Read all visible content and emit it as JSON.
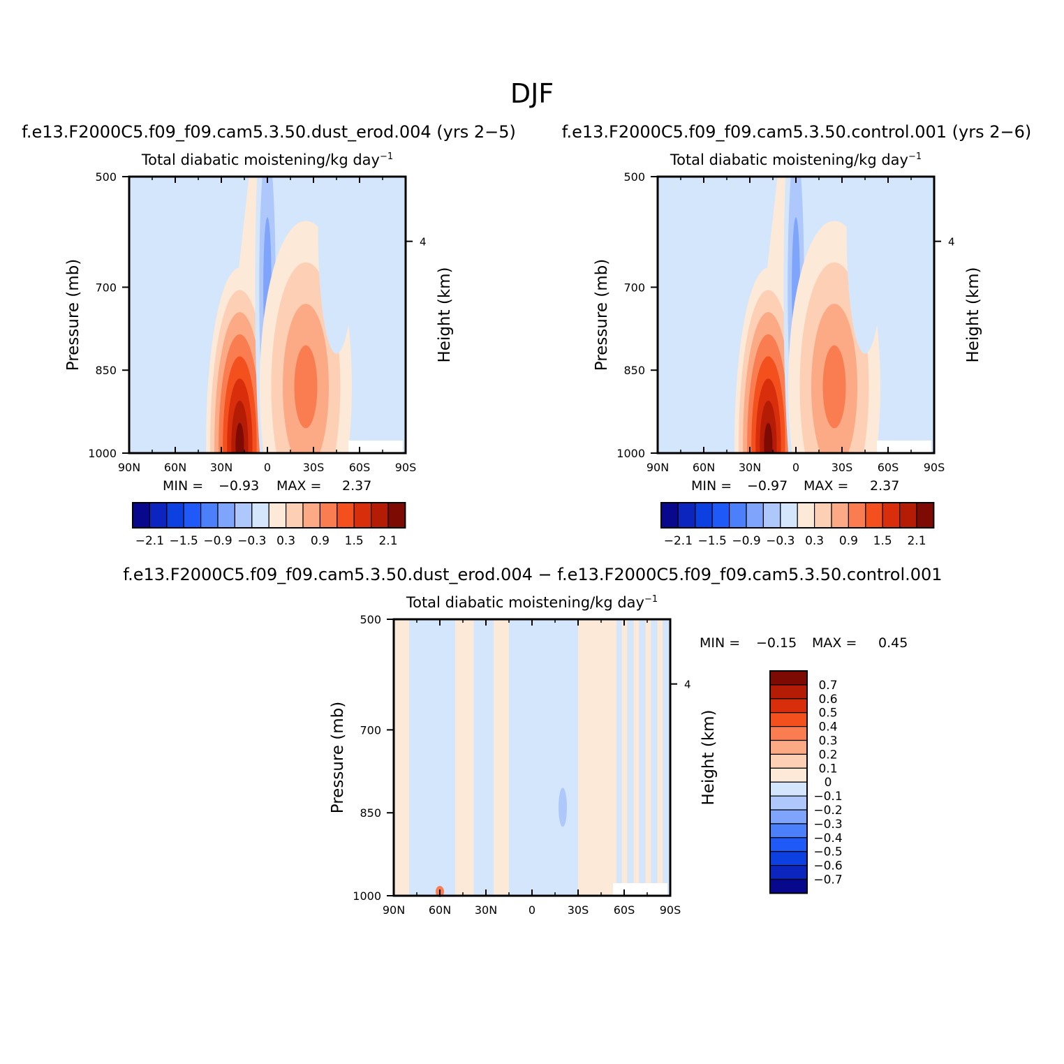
{
  "figure": {
    "title": "DJF"
  },
  "colors": {
    "diverging_16": [
      "#08088c",
      "#0b25be",
      "#0c40e0",
      "#1f5af8",
      "#4b80fa",
      "#7ea4fb",
      "#aec8fb",
      "#d4e6fb",
      "#fde9d8",
      "#fdd0b6",
      "#fcaa86",
      "#f97d50",
      "#f3501e",
      "#d82e0c",
      "#b51c06",
      "#7e0a04"
    ]
  },
  "chart_data": [
    {
      "id": "panel-a",
      "type": "contour",
      "case_title": "f.e13.F2000C5.f09_f09.cam5.3.50.dust_erod.004 (yrs 2−5)",
      "variable": "Total diabatic moistening/kg day",
      "variable_sup": "−1",
      "ylabel": "Pressure (mb)",
      "ylabel_right": "Height (km)",
      "x_ticks": [
        "90N",
        "60N",
        "30N",
        "0",
        "30S",
        "60S",
        "90S"
      ],
      "x_values": [
        90,
        60,
        30,
        0,
        -30,
        -60,
        -90
      ],
      "y_ticks": [
        "500",
        "700",
        "850",
        "1000"
      ],
      "y_values": [
        500,
        700,
        850,
        1000
      ],
      "y_right_ticks": [
        "4"
      ],
      "ylim": [
        1000,
        500
      ],
      "min_label": "MIN =",
      "min_value": "−0.93",
      "max_label": "MAX =",
      "max_value": "2.37",
      "colorbar": {
        "orientation": "horizontal",
        "levels": [
          -2.1,
          -1.8,
          -1.5,
          -1.2,
          -0.9,
          -0.6,
          -0.3,
          0,
          0.3,
          0.6,
          0.9,
          1.2,
          1.5,
          1.8,
          2.1
        ],
        "tick_labels": [
          "−2.1",
          "−1.5",
          "−0.9",
          "−0.3",
          "0.3",
          "0.9",
          "1.5",
          "2.1"
        ]
      },
      "features": [
        {
          "lat": 18,
          "p": 985,
          "value": 2.37,
          "lat_width": 22,
          "p_depth": 320
        },
        {
          "lat": 0,
          "p": 700,
          "value": -0.93,
          "lat_width": 8,
          "p_depth": 380
        },
        {
          "lat": -25,
          "p": 880,
          "value": 1.1,
          "lat_width": 30,
          "p_depth": 300
        },
        {
          "lat": 50,
          "p": 600,
          "value": -0.35,
          "lat_width": 15,
          "p_depth": 220
        },
        {
          "lat": -45,
          "p": 600,
          "value": -0.35,
          "lat_width": 12,
          "p_depth": 220
        }
      ]
    },
    {
      "id": "panel-b",
      "type": "contour",
      "case_title": "f.e13.F2000C5.f09_f09.cam5.3.50.control.001 (yrs 2−6)",
      "variable": "Total diabatic moistening/kg day",
      "variable_sup": "−1",
      "ylabel": "Pressure (mb)",
      "ylabel_right": "Height (km)",
      "x_ticks": [
        "90N",
        "60N",
        "30N",
        "0",
        "30S",
        "60S",
        "90S"
      ],
      "x_values": [
        90,
        60,
        30,
        0,
        -30,
        -60,
        -90
      ],
      "y_ticks": [
        "500",
        "700",
        "850",
        "1000"
      ],
      "y_values": [
        500,
        700,
        850,
        1000
      ],
      "y_right_ticks": [
        "4"
      ],
      "ylim": [
        1000,
        500
      ],
      "min_label": "MIN =",
      "min_value": "−0.97",
      "max_label": "MAX =",
      "max_value": "2.37",
      "colorbar": {
        "orientation": "horizontal",
        "levels": [
          -2.1,
          -1.8,
          -1.5,
          -1.2,
          -0.9,
          -0.6,
          -0.3,
          0,
          0.3,
          0.6,
          0.9,
          1.2,
          1.5,
          1.8,
          2.1
        ],
        "tick_labels": [
          "−2.1",
          "−1.5",
          "−0.9",
          "−0.3",
          "0.3",
          "0.9",
          "1.5",
          "2.1"
        ]
      },
      "features": [
        {
          "lat": 18,
          "p": 985,
          "value": 2.37,
          "lat_width": 22,
          "p_depth": 320
        },
        {
          "lat": 0,
          "p": 700,
          "value": -0.97,
          "lat_width": 8,
          "p_depth": 380
        },
        {
          "lat": -25,
          "p": 880,
          "value": 1.1,
          "lat_width": 30,
          "p_depth": 300
        },
        {
          "lat": 50,
          "p": 600,
          "value": -0.35,
          "lat_width": 15,
          "p_depth": 220
        },
        {
          "lat": -45,
          "p": 600,
          "value": -0.35,
          "lat_width": 12,
          "p_depth": 220
        }
      ]
    },
    {
      "id": "panel-diff",
      "type": "contour",
      "case_title": "f.e13.F2000C5.f09_f09.cam5.3.50.dust_erod.004 − f.e13.F2000C5.f09_f09.cam5.3.50.control.001",
      "variable": "Total diabatic moistening/kg day",
      "variable_sup": "−1",
      "ylabel": "Pressure (mb)",
      "ylabel_right": "Height (km)",
      "x_ticks": [
        "90N",
        "60N",
        "30N",
        "0",
        "30S",
        "60S",
        "90S"
      ],
      "x_values": [
        90,
        60,
        30,
        0,
        -30,
        -60,
        -90
      ],
      "y_ticks": [
        "500",
        "700",
        "850",
        "1000"
      ],
      "y_values": [
        500,
        700,
        850,
        1000
      ],
      "y_right_ticks": [
        "4"
      ],
      "ylim": [
        1000,
        500
      ],
      "min_label": "MIN =",
      "min_value": "−0.15",
      "max_label": "MAX =",
      "max_value": "0.45",
      "colorbar": {
        "orientation": "vertical",
        "levels": [
          0.7,
          0.6,
          0.5,
          0.4,
          0.3,
          0.2,
          0.1,
          0,
          -0.1,
          -0.2,
          -0.3,
          -0.4,
          -0.5,
          -0.6,
          -0.7
        ],
        "tick_labels": [
          "0.7",
          "0.6",
          "0.5",
          "0.4",
          "0.3",
          "0.2",
          "0.1",
          "0",
          "−0.1",
          "−0.2",
          "−0.3",
          "−0.4",
          "−0.5",
          "−0.6",
          "−0.7"
        ]
      },
      "bands": [
        {
          "lat_from": 90,
          "lat_to": 80,
          "sign": "positive"
        },
        {
          "lat_from": 80,
          "lat_to": 50,
          "sign": "negative"
        },
        {
          "lat_from": 50,
          "lat_to": 38,
          "sign": "positive"
        },
        {
          "lat_from": 38,
          "lat_to": 25,
          "sign": "negative"
        },
        {
          "lat_from": 25,
          "lat_to": 15,
          "sign": "positive"
        },
        {
          "lat_from": 15,
          "lat_to": -30,
          "sign": "negative"
        },
        {
          "lat_from": -30,
          "lat_to": -55,
          "sign": "positive"
        },
        {
          "lat_from": -55,
          "lat_to": -90,
          "sign": "mixed"
        }
      ]
    }
  ]
}
